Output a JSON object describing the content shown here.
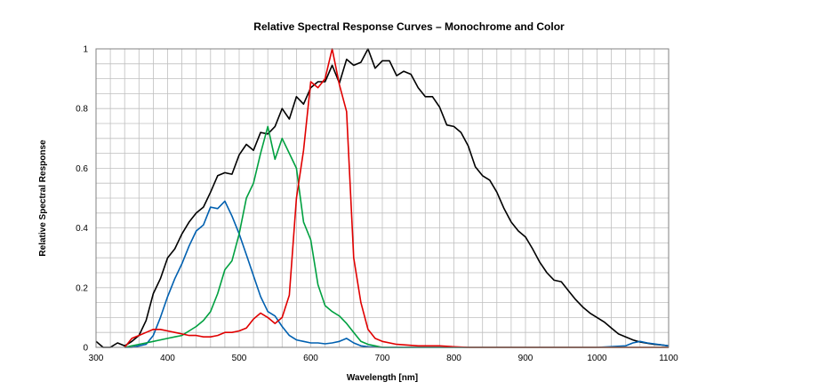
{
  "chart_data": {
    "type": "line",
    "title": "Relative Spectral Response Curves – Monochrome and Color",
    "xlabel": "Wavelength [nm]",
    "ylabel": "Relative Spectral Response",
    "xlim": [
      300,
      1100
    ],
    "ylim": [
      0,
      1
    ],
    "x_ticks": [
      "300",
      "400",
      "500",
      "600",
      "700",
      "800",
      "900",
      "1000",
      "1100"
    ],
    "y_ticks": [
      "0",
      "0.2",
      "0.4",
      "0.6",
      "0.8",
      "1"
    ],
    "grid": true,
    "series": [
      {
        "color": "#000000",
        "x": [
          300,
          305,
          310,
          320,
          330,
          340,
          350,
          360,
          370,
          380,
          390,
          400,
          410,
          420,
          430,
          440,
          450,
          460,
          470,
          480,
          490,
          500,
          510,
          520,
          530,
          540,
          550,
          560,
          570,
          580,
          590,
          600,
          610,
          620,
          630,
          640,
          650,
          660,
          670,
          680,
          690,
          700,
          710,
          720,
          730,
          740,
          750,
          760,
          770,
          780,
          790,
          800,
          810,
          820,
          830,
          840,
          850,
          860,
          870,
          880,
          890,
          900,
          910,
          920,
          930,
          940,
          950,
          960,
          970,
          980,
          990,
          1000,
          1010,
          1020,
          1030,
          1040,
          1050,
          1060,
          1070,
          1080,
          1090,
          1100
        ],
        "values": [
          0.02,
          0.01,
          0.0,
          0.0,
          0.015,
          0.005,
          0.02,
          0.04,
          0.09,
          0.18,
          0.23,
          0.3,
          0.33,
          0.38,
          0.42,
          0.45,
          0.47,
          0.52,
          0.575,
          0.585,
          0.58,
          0.645,
          0.68,
          0.66,
          0.72,
          0.715,
          0.74,
          0.8,
          0.765,
          0.84,
          0.815,
          0.87,
          0.89,
          0.89,
          0.945,
          0.885,
          0.965,
          0.945,
          0.955,
          1.0,
          0.935,
          0.96,
          0.96,
          0.91,
          0.925,
          0.915,
          0.87,
          0.84,
          0.84,
          0.805,
          0.745,
          0.74,
          0.72,
          0.675,
          0.605,
          0.575,
          0.56,
          0.52,
          0.465,
          0.42,
          0.39,
          0.37,
          0.33,
          0.285,
          0.25,
          0.225,
          0.22,
          0.19,
          0.16,
          0.135,
          0.115,
          0.1,
          0.085,
          0.065,
          0.045,
          0.035,
          0.025,
          0.018,
          0.014,
          0.01,
          0.008,
          0.005
        ]
      },
      {
        "color": "#0060b0",
        "x": [
          340,
          350,
          360,
          370,
          380,
          390,
          400,
          410,
          420,
          430,
          440,
          450,
          460,
          470,
          480,
          490,
          500,
          510,
          520,
          530,
          540,
          550,
          560,
          570,
          580,
          590,
          600,
          610,
          620,
          630,
          640,
          650,
          660,
          670,
          680,
          690,
          700,
          750,
          800,
          900,
          1000,
          1040,
          1050,
          1060,
          1070,
          1100
        ],
        "values": [
          0.0,
          0.0,
          0.005,
          0.01,
          0.04,
          0.1,
          0.17,
          0.23,
          0.28,
          0.34,
          0.39,
          0.41,
          0.47,
          0.465,
          0.49,
          0.44,
          0.38,
          0.31,
          0.24,
          0.17,
          0.12,
          0.105,
          0.07,
          0.04,
          0.025,
          0.02,
          0.015,
          0.015,
          0.012,
          0.015,
          0.02,
          0.03,
          0.015,
          0.005,
          0.002,
          0.001,
          0.0,
          0.0,
          0.0,
          0.0,
          0.0,
          0.005,
          0.015,
          0.02,
          0.015,
          0.005
        ]
      },
      {
        "color": "#00a040",
        "x": [
          340,
          350,
          360,
          370,
          380,
          390,
          400,
          410,
          420,
          430,
          440,
          450,
          460,
          470,
          480,
          490,
          500,
          510,
          520,
          530,
          540,
          550,
          560,
          570,
          580,
          590,
          600,
          610,
          620,
          630,
          640,
          650,
          660,
          670,
          680,
          690,
          700,
          750,
          800,
          900,
          1000,
          1100
        ],
        "values": [
          0.0,
          0.005,
          0.01,
          0.015,
          0.02,
          0.025,
          0.03,
          0.035,
          0.04,
          0.055,
          0.07,
          0.09,
          0.12,
          0.18,
          0.26,
          0.29,
          0.38,
          0.5,
          0.55,
          0.65,
          0.74,
          0.63,
          0.7,
          0.65,
          0.6,
          0.42,
          0.36,
          0.21,
          0.14,
          0.12,
          0.105,
          0.08,
          0.05,
          0.02,
          0.01,
          0.005,
          0.0,
          0.0,
          0.0,
          0.0,
          0.0,
          0.0
        ]
      },
      {
        "color": "#e00000",
        "x": [
          340,
          350,
          360,
          370,
          380,
          390,
          400,
          410,
          420,
          430,
          440,
          450,
          460,
          470,
          480,
          490,
          500,
          510,
          520,
          530,
          540,
          550,
          560,
          570,
          580,
          590,
          600,
          610,
          620,
          630,
          640,
          650,
          660,
          670,
          680,
          690,
          700,
          720,
          750,
          780,
          800,
          820,
          850,
          900,
          1000,
          1100
        ],
        "values": [
          0.0,
          0.03,
          0.04,
          0.05,
          0.06,
          0.06,
          0.055,
          0.05,
          0.045,
          0.04,
          0.04,
          0.035,
          0.035,
          0.04,
          0.05,
          0.05,
          0.055,
          0.065,
          0.095,
          0.115,
          0.1,
          0.08,
          0.1,
          0.175,
          0.5,
          0.66,
          0.89,
          0.87,
          0.9,
          1.0,
          0.88,
          0.79,
          0.3,
          0.15,
          0.06,
          0.03,
          0.02,
          0.01,
          0.005,
          0.005,
          0.002,
          0.0,
          0.0,
          0.0,
          0.0,
          0.0
        ]
      }
    ]
  }
}
